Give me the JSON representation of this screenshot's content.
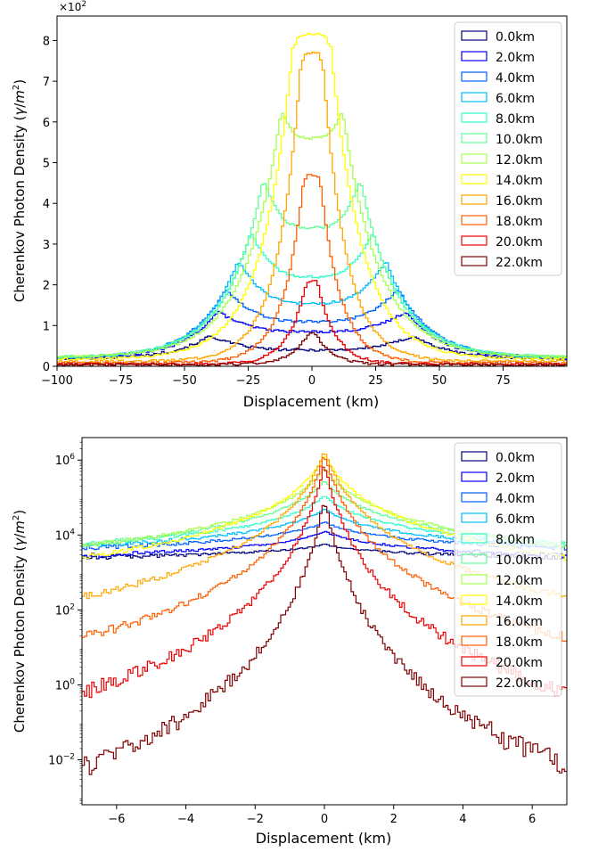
{
  "chart_data": [
    {
      "type": "line",
      "style": "step",
      "xlabel": "Displacement (km)",
      "ylabel": "Cherenkov Photon Density (γ/m²)",
      "ylabel_prefix": "Cherenkov Photon Density (",
      "ylabel_gamma": "γ",
      "ylabel_mid": "/",
      "ylabel_m": "m",
      "ylabel_exp": "2",
      "ylabel_suffix": ")",
      "offset_text": "×10",
      "offset_exp": "2",
      "xlim": [
        -100,
        100
      ],
      "ylim": [
        0,
        8.6
      ],
      "y_scale": "linear",
      "x_ticks": [
        -100,
        -75,
        -50,
        -25,
        0,
        25,
        50,
        75
      ],
      "x_tick_labels": [
        "−100",
        "−75",
        "−50",
        "−25",
        "0",
        "25",
        "50",
        "75"
      ],
      "y_ticks": [
        0,
        1,
        2,
        3,
        4,
        5,
        6,
        7,
        8
      ],
      "y_tick_labels": [
        "0",
        "1",
        "2",
        "3",
        "4",
        "5",
        "6",
        "7",
        "8"
      ],
      "legend_position": "top-right",
      "series": [
        {
          "name": "0.0km",
          "color": "#00007f",
          "center": 0.4,
          "inner": 0.4,
          "edge": 0.75,
          "core_w": 40,
          "width": 1,
          "floor": 0.15,
          "outer": 0.18
        },
        {
          "name": "2.0km",
          "color": "#0000ff",
          "center": 0.85,
          "inner": 0.85,
          "edge": 1.35,
          "core_w": 37,
          "width": 1,
          "floor": 0.15,
          "outer": 0.18
        },
        {
          "name": "4.0km",
          "color": "#005fff",
          "center": 1.1,
          "inner": 1.1,
          "edge": 1.9,
          "core_w": 34,
          "width": 1,
          "floor": 0.2,
          "outer": 0.2
        },
        {
          "name": "6.0km",
          "color": "#00bfff",
          "center": 1.55,
          "inner": 1.55,
          "edge": 2.6,
          "core_w": 29,
          "width": 1,
          "floor": 0.2,
          "outer": 0.2
        },
        {
          "name": "8.0km",
          "color": "#2fffc7",
          "center": 2.2,
          "inner": 2.2,
          "edge": 3.3,
          "core_w": 24,
          "width": 1,
          "floor": 0.25,
          "outer": 0.22
        },
        {
          "name": "10.0km",
          "color": "#5fff97",
          "center": 3.4,
          "inner": 3.4,
          "edge": 4.6,
          "core_w": 19,
          "width": 1,
          "floor": 0.25,
          "outer": 0.22
        },
        {
          "name": "12.0km",
          "color": "#a7ff4f",
          "center": 5.6,
          "inner": 5.6,
          "edge": 6.3,
          "core_w": 12,
          "width": 1,
          "floor": 0.25,
          "outer": 0.22
        },
        {
          "name": "14.0km",
          "color": "#ffff00",
          "center": 8.15,
          "inner": 8.15,
          "edge": 8.15,
          "core_w": 7,
          "width": 1,
          "floor": 0.2,
          "outer": 0.18
        },
        {
          "name": "16.0km",
          "color": "#ffa700",
          "center": 7.7,
          "inner": 7.7,
          "edge": 7.7,
          "core_w": 4,
          "width": 1,
          "floor": 0.1,
          "outer": 0.12
        },
        {
          "name": "18.0km",
          "color": "#ff5f00",
          "center": 4.7,
          "inner": 4.7,
          "edge": 4.7,
          "core_w": 3,
          "width": 1,
          "floor": 0.05,
          "outer": 0.08
        },
        {
          "name": "20.0km",
          "color": "#ef0000",
          "center": 2.1,
          "inner": 2.1,
          "edge": 2.1,
          "core_w": 2,
          "width": 1,
          "floor": 0.02,
          "outer": 0.05
        },
        {
          "name": "22.0km",
          "color": "#7f0000",
          "center": 0.8,
          "inner": 0.8,
          "edge": 0.8,
          "core_w": 1.5,
          "width": 1,
          "floor": 0.01,
          "outer": 0.04
        }
      ]
    },
    {
      "type": "line",
      "style": "step",
      "xlabel": "Displacement (km)",
      "ylabel": "Cherenkov Photon Density (γ/m²)",
      "ylabel_prefix": "Cherenkov Photon Density (",
      "ylabel_gamma": "γ",
      "ylabel_mid": "/",
      "ylabel_m": "m",
      "ylabel_exp": "2",
      "ylabel_suffix": ")",
      "xlim": [
        -7,
        7
      ],
      "y_scale": "log",
      "ylim_log10": [
        -3.2,
        6.6
      ],
      "x_ticks": [
        -6,
        -4,
        -2,
        0,
        2,
        4,
        6
      ],
      "x_tick_labels": [
        "−6",
        "−4",
        "−2",
        "0",
        "2",
        "4",
        "6"
      ],
      "y_ticks_log10": [
        -2,
        0,
        2,
        4,
        6
      ],
      "y_tick_base": "10",
      "y_tick_exps": [
        "−2",
        "0",
        "2",
        "4",
        "6"
      ],
      "legend_position": "top-right",
      "series": [
        {
          "name": "0.0km",
          "color": "#00007f",
          "peak": 3.75,
          "edge": 3.4,
          "noise": 0.1
        },
        {
          "name": "2.0km",
          "color": "#0000ff",
          "peak": 4.1,
          "edge": 3.45,
          "noise": 0.1
        },
        {
          "name": "4.0km",
          "color": "#005fff",
          "peak": 4.35,
          "edge": 3.65,
          "noise": 0.1
        },
        {
          "name": "6.0km",
          "color": "#00bfff",
          "peak": 4.7,
          "edge": 3.7,
          "noise": 0.1
        },
        {
          "name": "8.0km",
          "color": "#2fffc7",
          "peak": 5.05,
          "edge": 3.75,
          "noise": 0.1
        },
        {
          "name": "10.0km",
          "color": "#5fff97",
          "peak": 5.45,
          "edge": 3.75,
          "noise": 0.1
        },
        {
          "name": "12.0km",
          "color": "#a7ff4f",
          "peak": 5.8,
          "edge": 3.7,
          "noise": 0.1
        },
        {
          "name": "14.0km",
          "color": "#ffff00",
          "peak": 6.15,
          "edge": 3.4,
          "noise": 0.12
        },
        {
          "name": "16.0km",
          "color": "#ffa700",
          "peak": 6.25,
          "edge": 2.35,
          "noise": 0.15
        },
        {
          "name": "18.0km",
          "color": "#ff5f00",
          "peak": 6.15,
          "edge": 1.25,
          "noise": 0.22
        },
        {
          "name": "20.0km",
          "color": "#ef0000",
          "peak": 5.9,
          "edge": -0.2,
          "noise": 0.35
        },
        {
          "name": "22.0km",
          "color": "#7f0000",
          "peak": 5.0,
          "edge": -2.2,
          "noise": 0.55
        }
      ]
    }
  ]
}
